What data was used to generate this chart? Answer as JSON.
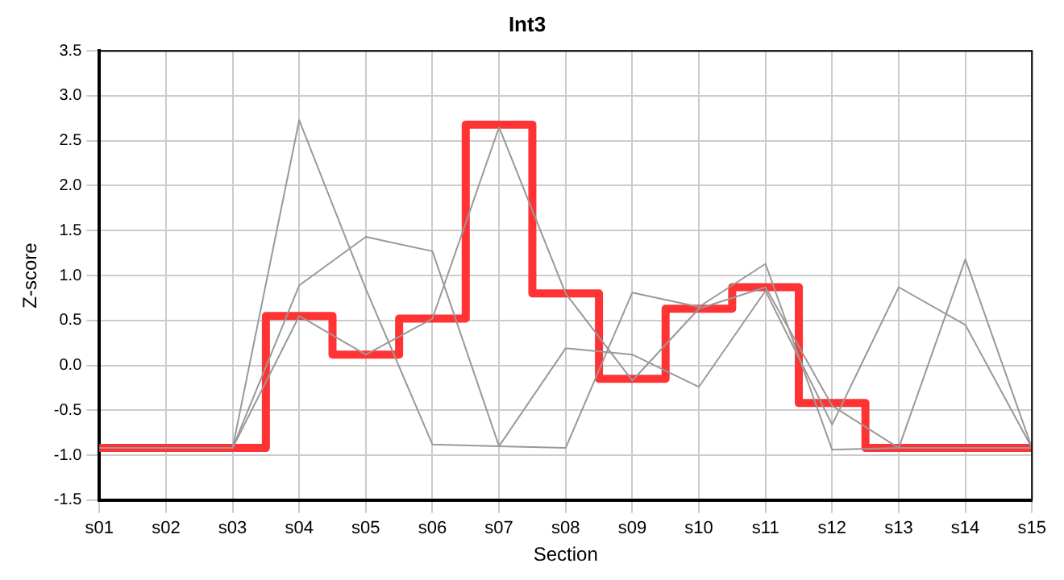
{
  "chart_data": {
    "type": "line",
    "title": "Int3",
    "xlabel": "Section",
    "ylabel": "Z-score",
    "categories": [
      "s01",
      "s02",
      "s03",
      "s04",
      "s05",
      "s06",
      "s07",
      "s08",
      "s09",
      "s10",
      "s11",
      "s12",
      "s13",
      "s14",
      "s15"
    ],
    "series": [
      {
        "type": "line",
        "color": "#999999",
        "values": [
          -0.92,
          -0.92,
          -0.92,
          2.73,
          0.85,
          -0.88,
          -0.9,
          -0.92,
          0.81,
          0.65,
          1.13,
          -0.94,
          -0.92,
          1.18,
          -0.92
        ]
      },
      {
        "type": "line",
        "color": "#999999",
        "values": [
          -0.92,
          -0.92,
          -0.92,
          0.89,
          1.43,
          1.27,
          -0.9,
          0.19,
          0.12,
          -0.24,
          0.83,
          -0.66,
          0.87,
          0.45,
          -0.92
        ]
      },
      {
        "type": "line",
        "color": "#999999",
        "values": [
          -0.92,
          -0.92,
          -0.92,
          0.55,
          0.12,
          0.52,
          2.65,
          0.8,
          -0.17,
          0.63,
          0.87,
          -0.45,
          -0.92,
          -0.92,
          -0.92
        ]
      },
      {
        "type": "step",
        "color": "#ff3333",
        "values": [
          -0.92,
          -0.92,
          -0.92,
          0.55,
          0.12,
          0.52,
          2.68,
          0.8,
          -0.15,
          0.63,
          0.87,
          -0.42,
          -0.92,
          -0.92,
          -0.92
        ]
      }
    ],
    "ylim": [
      -1.5,
      3.5
    ],
    "yticks": [
      {
        "value": -1.5,
        "label": "-1.5"
      },
      {
        "value": -1,
        "label": "-1.0"
      },
      {
        "value": -0.5,
        "label": "-0.5"
      },
      {
        "value": 0,
        "label": "0.0"
      },
      {
        "value": 0.5,
        "label": "0.5"
      },
      {
        "value": 1,
        "label": "1.0"
      },
      {
        "value": 1.5,
        "label": "1.5"
      },
      {
        "value": 2,
        "label": "2.0"
      },
      {
        "value": 2.5,
        "label": "2.5"
      },
      {
        "value": 3,
        "label": "3.0"
      },
      {
        "value": 3.5,
        "label": "3.5"
      }
    ],
    "grid": true,
    "legend": false,
    "marker": "none"
  }
}
